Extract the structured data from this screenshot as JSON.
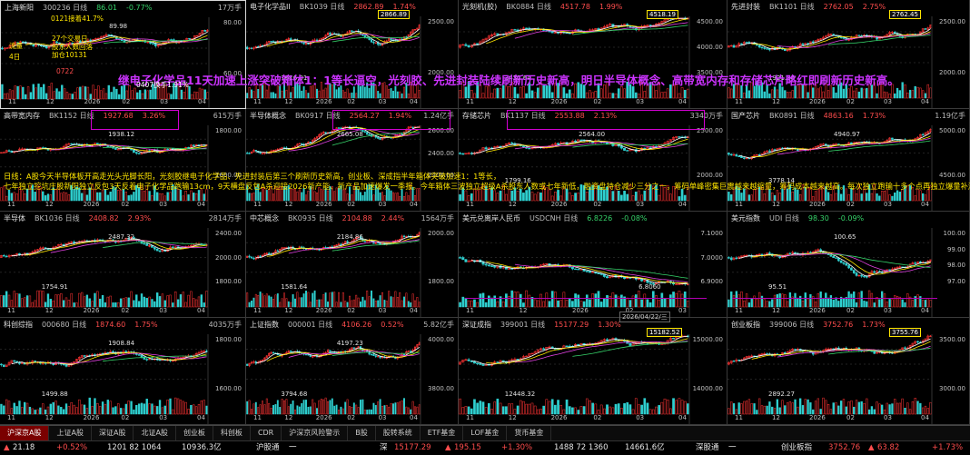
{
  "panels": [
    {
      "name": "上海新阳",
      "code": "300236 日线",
      "price": "86.01",
      "change": "-0.77%",
      "vol": "17万手",
      "up": false,
      "ticks": [
        "80.00",
        "60.00"
      ],
      "xlabels": [
        "11",
        "12",
        "2026",
        "02",
        "03",
        "04"
      ],
      "low": "",
      "high": "89.98",
      "sel": true,
      "boxed": false,
      "trend": "up"
    },
    {
      "name": "电子化学品II",
      "code": "BK1039 日线",
      "price": "2862.89",
      "change": "1.74%",
      "vol": "",
      "up": true,
      "ticks": [
        "2500.00",
        "2000.00"
      ],
      "xlabels": [
        "11",
        "12",
        "2026",
        "02",
        "03",
        "04"
      ],
      "low": "1616.01",
      "high": "2866.89",
      "boxed": true,
      "trend": "up"
    },
    {
      "name": "光刻机(胶)",
      "code": "BK0884 日线",
      "price": "4517.78",
      "change": "1.99%",
      "vol": "",
      "up": true,
      "ticks": [
        "4500.00",
        "4000.00",
        "3500.00"
      ],
      "xlabels": [
        "11",
        "12",
        "2026",
        "02",
        "03",
        "04"
      ],
      "low": "3432.64",
      "high": "4518.19",
      "boxed": true,
      "trend": "up"
    },
    {
      "name": "先进封装",
      "code": "BK1101 日线",
      "price": "2762.05",
      "change": "2.75%",
      "vol": "",
      "up": true,
      "ticks": [
        "2500.00",
        "2000.00"
      ],
      "xlabels": [
        "11",
        "12",
        "2026",
        "02",
        "03",
        "04"
      ],
      "low": "1921.36",
      "high": "2762.45",
      "boxed": true,
      "trend": "up"
    },
    {
      "name": "高带宽内存",
      "code": "BK1152 日线",
      "price": "1927.68",
      "change": "3.26%",
      "vol": "615万手",
      "up": true,
      "ticks": [
        "1800.00",
        "1600.00"
      ],
      "xlabels": [
        "11",
        "12",
        "2026",
        "02",
        "03",
        "04"
      ],
      "low": "",
      "high": "1938.12",
      "boxed": false,
      "trend": "up"
    },
    {
      "name": "半导体概念",
      "code": "BK0917 日线",
      "price": "2564.27",
      "change": "1.94%",
      "vol": "1.24亿手",
      "up": true,
      "ticks": [
        "2600.00",
        "2400.00",
        "2200.00"
      ],
      "xlabels": [
        "11",
        "12",
        "2026",
        "02",
        "03",
        "04"
      ],
      "low": "",
      "high": "2665.08",
      "boxed": false,
      "trend": "up"
    },
    {
      "name": "存储芯片",
      "code": "BK1137 日线",
      "price": "2553.88",
      "change": "2.13%",
      "vol": "3340万手",
      "up": true,
      "ticks": [
        "2500.00",
        "2000.00"
      ],
      "xlabels": [
        "11",
        "12",
        "2026",
        "02",
        "03",
        "04"
      ],
      "low": "1799.16",
      "high": "2564.00",
      "boxed": false,
      "trend": "up"
    },
    {
      "name": "国产芯片",
      "code": "BK0891 日线",
      "price": "4863.16",
      "change": "1.73%",
      "vol": "1.19亿手",
      "up": true,
      "ticks": [
        "5000.00",
        "4500.00"
      ],
      "xlabels": [
        "11",
        "12",
        "2026",
        "02",
        "03",
        "04"
      ],
      "low": "3778.14",
      "high": "4940.97",
      "boxed": false,
      "trend": "up"
    },
    {
      "name": "半导体",
      "code": "BK1036 日线",
      "price": "2408.82",
      "change": "2.93%",
      "vol": "2814万手",
      "up": true,
      "ticks": [
        "2400.00",
        "2000.00",
        "1800.00"
      ],
      "xlabels": [
        "11",
        "12",
        "2026",
        "02",
        "03",
        "04"
      ],
      "low": "1754.91",
      "high": "2487.32",
      "boxed": false,
      "trend": "up"
    },
    {
      "name": "中芯概念",
      "code": "BK0935 日线",
      "price": "2104.88",
      "change": "2.44%",
      "vol": "1564万手",
      "up": true,
      "ticks": [
        "2000.00",
        "1800.00"
      ],
      "xlabels": [
        "11",
        "12",
        "2026",
        "02",
        "03",
        "04"
      ],
      "low": "1581.64",
      "high": "2184.86",
      "boxed": false,
      "trend": "up"
    },
    {
      "name": "美元兑离岸人民币",
      "code": "USDCNH 日线",
      "price": "6.8226",
      "change": "-0.08%",
      "vol": "",
      "up": false,
      "ticks": [
        "7.1000",
        "7.0000",
        "6.9000"
      ],
      "xlabels": [
        "11",
        "12",
        "2026",
        "02",
        "03"
      ],
      "low": "6.8060",
      "high": "",
      "boxed": false,
      "trend": "down"
    },
    {
      "name": "美元指数",
      "code": "UDI 日线",
      "price": "98.30",
      "change": "-0.09%",
      "vol": "",
      "up": false,
      "ticks": [
        "100.00",
        "99.00",
        "98.00",
        "97.00"
      ],
      "xlabels": [
        "11",
        "12",
        "2026",
        "02",
        "03",
        "04"
      ],
      "low": "95.51",
      "high": "100.65",
      "boxed": false,
      "trend": "flat"
    },
    {
      "name": "科创综指",
      "code": "000680 日线",
      "price": "1874.60",
      "change": "1.75%",
      "vol": "4035万手",
      "up": true,
      "ticks": [
        "1800.00",
        "1600.00"
      ],
      "xlabels": [
        "11",
        "12",
        "2026",
        "02",
        "03",
        "04"
      ],
      "low": "1499.88",
      "high": "1908.84",
      "boxed": false,
      "trend": "up"
    },
    {
      "name": "上证指数",
      "code": "000001 日线",
      "price": "4106.26",
      "change": "0.52%",
      "vol": "5.82亿手",
      "up": true,
      "ticks": [
        "4000.00",
        "3800.00"
      ],
      "xlabels": [
        "11",
        "12",
        "2026",
        "02",
        "03",
        "04"
      ],
      "low": "3794.68",
      "high": "4197.23",
      "boxed": false,
      "trend": "up"
    },
    {
      "name": "深证成指",
      "code": "399001 日线",
      "price": "15177.29",
      "change": "1.30%",
      "vol": "",
      "up": true,
      "ticks": [
        "15000.00",
        "14000.00"
      ],
      "xlabels": [
        "11",
        "12",
        "2026",
        "02",
        "03",
        "04"
      ],
      "low": "12448.32",
      "high": "15182.52",
      "boxed": true,
      "trend": "up"
    },
    {
      "name": "创业板指",
      "code": "399006 日线",
      "price": "3752.76",
      "change": "1.73%",
      "vol": "",
      "up": true,
      "ticks": [
        "3500.00",
        "3000.00"
      ],
      "xlabels": [
        "11",
        "12",
        "2026",
        "02",
        "03",
        "04"
      ],
      "low": "2892.27",
      "high": "3755.76",
      "boxed": true,
      "trend": "up"
    }
  ],
  "overlay_title": "继电子化学品11天加速上涨突破箱体1：1等长逼空，光刻胶、先进封装陆续刷新历史新高，明日半导体概念、高带宽内存和存储芯片略红即刷新历史新高。",
  "overlay_notes": [
    "日线：A股今天半导体板开高走光头光脚长阳，光刻胶继电子化学品、先进封装后第三个刷新历史新高，创业板、深成指半年箱体突破加速1：1等长，",
    "七年独立挖坑庄股新阳独立反包3天反着电子化学品跑输13cm，9天横盘反包A杀迎接2026新产能、新产品加速爆发一季报。今年箱体三波独立超级A杀股东人数或七年新低，融资盘持仓减少三分之一，筹码单峰密集巨震越来越缩量，筹码成本越来越高。每次独立跑输十多个点再独立爆量补涨。"
  ],
  "panel0_notes": [
    "0121接着41.7%",
    "27个交易日",
    "股东人数回落",
    "加仓10131",
    "流量",
    "4日",
    "0722",
    "0407换手1.91%"
  ],
  "usdcnh_date": "2026/04/22/三",
  "tabs": [
    {
      "label": "沪深京A股",
      "active": true
    },
    {
      "label": "上证A股",
      "active": false
    },
    {
      "label": "深证A股",
      "active": false
    },
    {
      "label": "北证A股",
      "active": false
    },
    {
      "label": "创业板",
      "active": false
    },
    {
      "label": "科创板",
      "active": false
    },
    {
      "label": "CDR",
      "active": false
    },
    {
      "label": "沪深京风险警示",
      "active": false
    },
    {
      "label": "B股",
      "active": false
    },
    {
      "label": "股转系统",
      "active": false
    },
    {
      "label": "ETF基金",
      "active": false
    },
    {
      "label": "LOF基金",
      "active": false
    },
    {
      "label": "货币基金",
      "active": false
    }
  ],
  "ticker": {
    "sh_index": "21.18",
    "sh_pct": "+0.52%",
    "sh_updown": "1201 82 1064",
    "sh_amount": "10936.3亿",
    "sh_link": "沪股通",
    "sh_arrow": "一",
    "sz_label": "深",
    "sz_value": "15177.29",
    "sz_change": "195.15",
    "sz_pct": "+1.30%",
    "sz_updown": "1488 72 1360",
    "sz_amount": "14661.6亿",
    "sz_link": "深股通",
    "sz_arrow": "一",
    "cy_label": "创业板指",
    "cy_value": "3752.76",
    "cy_change": "63.82",
    "cy_pct": "+1.73%"
  },
  "colors": {
    "up": "#ff4d4d",
    "down": "#36d36a",
    "ma5": "#ffffff",
    "ma10": "#ffe600",
    "ma20": "#e040e0",
    "ma60": "#36d36a",
    "box": "#ffe600",
    "note": "#ffe600",
    "overlay": "#cc33ff"
  }
}
